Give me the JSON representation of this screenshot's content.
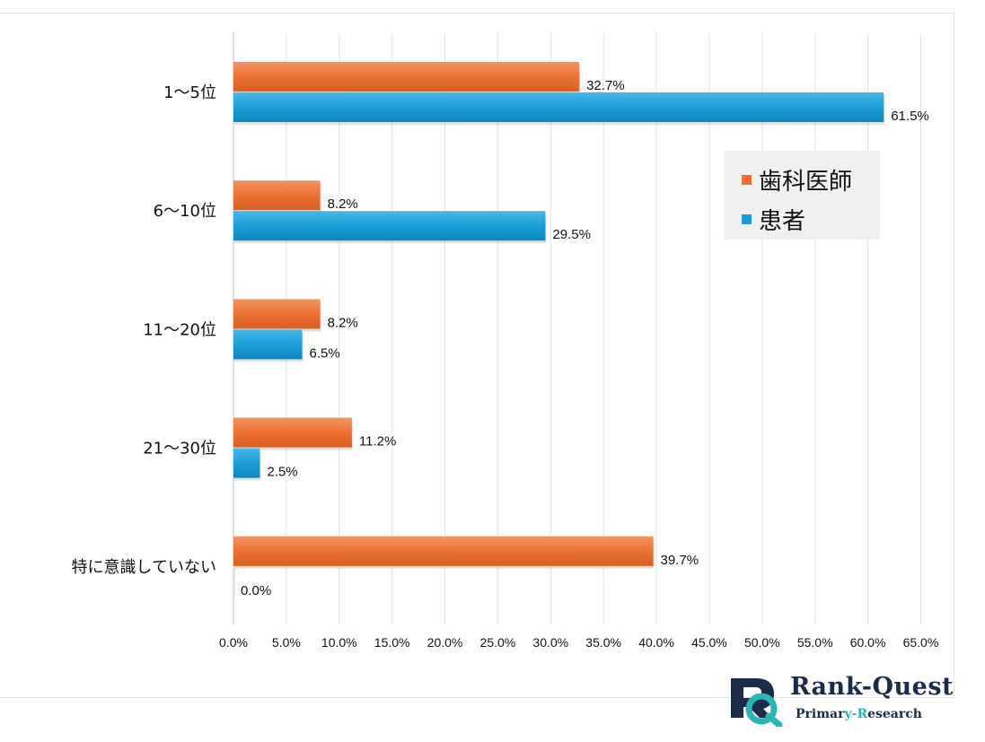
{
  "chart_data": {
    "type": "bar",
    "orientation": "horizontal",
    "categories": [
      "1～5位",
      "6～10位",
      "11～20位",
      "21～30位",
      "特に意識していない"
    ],
    "series": [
      {
        "name": "歯科医師",
        "color": "#ed7033",
        "values": [
          32.7,
          8.2,
          8.2,
          11.2,
          39.7
        ],
        "labels": [
          "32.7%",
          "8.2%",
          "8.2%",
          "11.2%",
          "39.7%"
        ]
      },
      {
        "name": "患者",
        "color": "#1a9ed8",
        "values": [
          61.5,
          29.5,
          6.5,
          2.5,
          0.0
        ],
        "labels": [
          "61.5%",
          "29.5%",
          "6.5%",
          "2.5%",
          "0.0%"
        ]
      }
    ],
    "x_ticks": [
      "0.0%",
      "5.0%",
      "10.0%",
      "15.0%",
      "20.0%",
      "25.0%",
      "30.0%",
      "35.0%",
      "40.0%",
      "45.0%",
      "50.0%",
      "55.0%",
      "60.0%",
      "65.0%"
    ],
    "xlim": [
      0,
      65
    ],
    "grid": true,
    "legend_position": "right"
  },
  "logo": {
    "title_part1": "Ran",
    "title_part2": "k-Quest",
    "subtitle_part1": "Primar",
    "subtitle_part2": "y-",
    "subtitle_part3": "R",
    "subtitle_part4": "esearch",
    "accent_color": "#2bb5b5",
    "dark_color": "#1c2b4a"
  }
}
